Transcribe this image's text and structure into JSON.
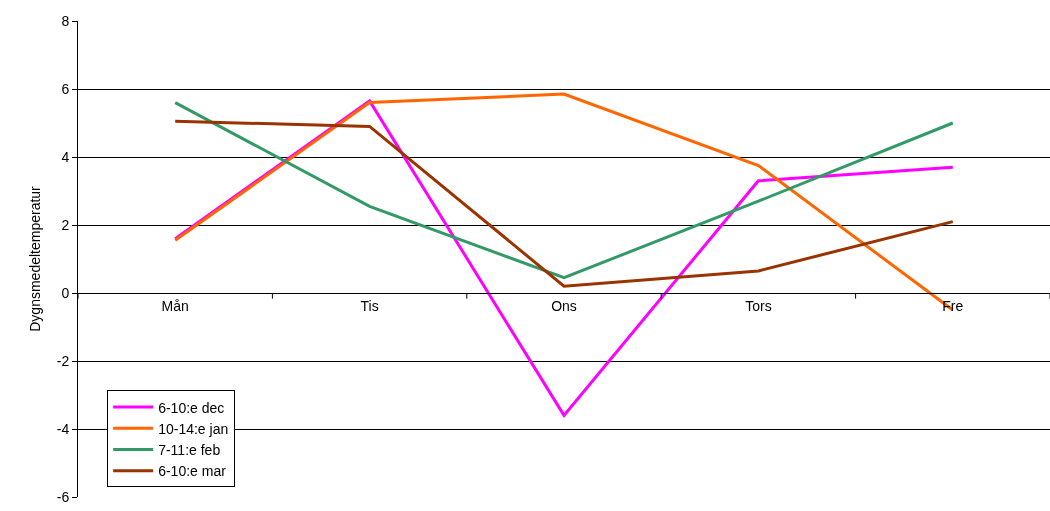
{
  "chart_data": {
    "type": "line",
    "ylabel": "Dygnsmedeltemperatur",
    "categories": [
      "Mån",
      "Tis",
      "Ons",
      "Tors",
      "Fre"
    ],
    "series": [
      {
        "name": "6-10:e dec",
        "color": "#ff00ff",
        "values": [
          1.6,
          5.65,
          -3.6,
          3.3,
          3.7
        ]
      },
      {
        "name": "10-14:e jan",
        "color": "#ff6600",
        "values": [
          1.55,
          5.6,
          5.85,
          3.75,
          -0.5
        ]
      },
      {
        "name": "7-11:e feb",
        "color": "#339966",
        "values": [
          5.6,
          2.55,
          0.45,
          2.7,
          5.0
        ]
      },
      {
        "name": "6-10:e mar",
        "color": "#993300",
        "values": [
          5.05,
          4.9,
          0.2,
          0.65,
          2.1
        ]
      }
    ],
    "ylim": [
      -6,
      8
    ],
    "yticks": [
      -6,
      -4,
      -2,
      0,
      2,
      4,
      6,
      8
    ],
    "grid": "y",
    "legend": "bottom left",
    "marker": "none",
    "line_style": "solid"
  }
}
